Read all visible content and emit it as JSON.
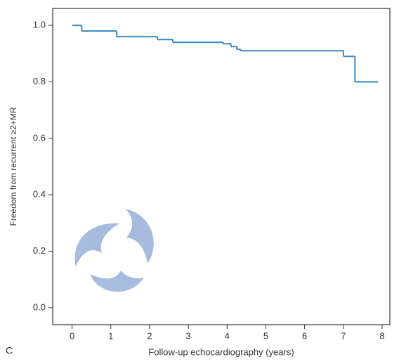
{
  "chart_data": {
    "type": "line",
    "step": "post",
    "panel_label": "C",
    "xlabel": "Follow-up echocardiography (years)",
    "ylabel": "Freedom from recurrent ≥2+MR",
    "x": [
      0,
      0.25,
      1.15,
      2.2,
      2.6,
      3.9,
      4.1,
      4.25,
      4.35,
      7.0,
      7.3,
      7.9
    ],
    "series": [
      {
        "color": "#3a87c0",
        "values": [
          1.0,
          0.98,
          0.96,
          0.95,
          0.94,
          0.935,
          0.925,
          0.915,
          0.91,
          0.89,
          0.8,
          0.8
        ]
      }
    ],
    "xlim": [
      -0.5,
      8.2
    ],
    "ylim": [
      -0.06,
      1.06
    ],
    "xticks": [
      0,
      1,
      2,
      3,
      4,
      5,
      6,
      7,
      8
    ],
    "yticks": [
      {
        "value": 0,
        "label": "0.0"
      },
      0.2,
      0.4,
      0.6,
      0.8,
      {
        "value": 1,
        "label": "1.0"
      }
    ]
  }
}
